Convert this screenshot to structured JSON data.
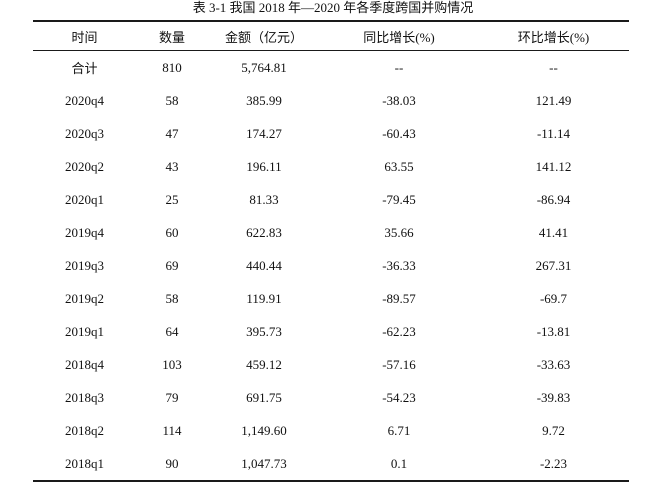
{
  "caption": "表 3-1    我国 2018 年—2020 年各季度跨国并购情况",
  "table": {
    "headers": [
      "时间",
      "数量",
      "金额（亿元）",
      "同比增长(%)",
      "环比增长(%)"
    ],
    "rows": [
      [
        "合计",
        "810",
        "5,764.81",
        "--",
        "--"
      ],
      [
        "2020q4",
        "58",
        "385.99",
        "-38.03",
        "121.49"
      ],
      [
        "2020q3",
        "47",
        "174.27",
        "-60.43",
        "-11.14"
      ],
      [
        "2020q2",
        "43",
        "196.11",
        "63.55",
        "141.12"
      ],
      [
        "2020q1",
        "25",
        "81.33",
        "-79.45",
        "-86.94"
      ],
      [
        "2019q4",
        "60",
        "622.83",
        "35.66",
        "41.41"
      ],
      [
        "2019q3",
        "69",
        "440.44",
        "-36.33",
        "267.31"
      ],
      [
        "2019q2",
        "58",
        "119.91",
        "-89.57",
        "-69.7"
      ],
      [
        "2019q1",
        "64",
        "395.73",
        "-62.23",
        "-13.81"
      ],
      [
        "2018q4",
        "103",
        "459.12",
        "-57.16",
        "-33.63"
      ],
      [
        "2018q3",
        "79",
        "691.75",
        "-54.23",
        "-39.83"
      ],
      [
        "2018q2",
        "114",
        "1,149.60",
        "6.71",
        "9.72"
      ],
      [
        "2018q1",
        "90",
        "1,047.73",
        "0.1",
        "-2.23"
      ]
    ]
  }
}
